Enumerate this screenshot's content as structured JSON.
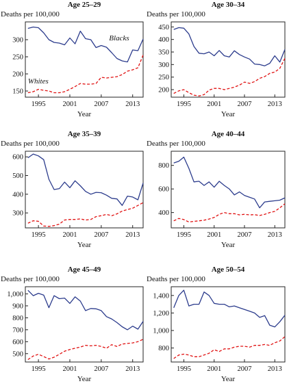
{
  "chart_data": [
    {
      "type": "line",
      "title": "Age 25–29",
      "ylabel": "Deaths per 100,000",
      "xlabel": "Year",
      "xlim": [
        1992.5,
        2015
      ],
      "xticks": [
        1995,
        2001,
        2007,
        2013
      ],
      "ylim": [
        132,
        352
      ],
      "yticks": [
        150,
        200,
        250,
        300
      ],
      "ytick_labels": [
        "150",
        "200",
        "250",
        "300"
      ],
      "x": [
        1993,
        1994,
        1995,
        1996,
        1997,
        1998,
        1999,
        2000,
        2001,
        2002,
        2003,
        2004,
        2005,
        2006,
        2007,
        2008,
        2009,
        2010,
        2011,
        2012,
        2013,
        2014,
        2015
      ],
      "series": [
        {
          "name": "Blacks",
          "color": "#2b3b8c",
          "dash": false,
          "values": [
            333,
            337,
            335,
            320,
            300,
            292,
            290,
            285,
            305,
            288,
            325,
            303,
            300,
            277,
            283,
            278,
            262,
            245,
            238,
            235,
            270,
            268,
            302
          ]
        },
        {
          "name": "Whites",
          "color": "#e01010",
          "dash": true,
          "values": [
            145,
            148,
            155,
            152,
            150,
            145,
            145,
            148,
            155,
            163,
            172,
            170,
            170,
            172,
            190,
            188,
            190,
            192,
            198,
            208,
            212,
            218,
            255
          ]
        }
      ],
      "annotations": [
        {
          "text": "Blacks",
          "x": 2008.5,
          "y": 298,
          "anchor": "start"
        },
        {
          "text": "Whites",
          "x": 1993,
          "y": 172,
          "anchor": "start"
        }
      ]
    },
    {
      "type": "line",
      "title": "Age 30–34",
      "ylabel": "Deaths per 100,000",
      "xlabel": "Year",
      "xlim": [
        1992.5,
        2015
      ],
      "xticks": [
        1995,
        2001,
        2007,
        2013
      ],
      "ylim": [
        170,
        470
      ],
      "yticks": [
        200,
        250,
        300,
        350,
        400,
        450
      ],
      "ytick_labels": [
        "200",
        "250",
        "300",
        "350",
        "400",
        "450"
      ],
      "x": [
        1993,
        1994,
        1995,
        1996,
        1997,
        1998,
        1999,
        2000,
        2001,
        2002,
        2003,
        2004,
        2005,
        2006,
        2007,
        2008,
        2009,
        2010,
        2011,
        2012,
        2013,
        2014,
        2015
      ],
      "series": [
        {
          "name": "Blacks",
          "color": "#2b3b8c",
          "dash": false,
          "values": [
            440,
            447,
            445,
            422,
            372,
            345,
            343,
            350,
            335,
            356,
            335,
            330,
            355,
            340,
            330,
            322,
            302,
            300,
            295,
            305,
            335,
            310,
            360
          ]
        },
        {
          "name": "Whites",
          "color": "#e01010",
          "dash": true,
          "values": [
            185,
            195,
            200,
            188,
            178,
            175,
            180,
            198,
            205,
            205,
            200,
            205,
            210,
            218,
            230,
            225,
            232,
            245,
            252,
            265,
            270,
            285,
            325
          ]
        }
      ]
    },
    {
      "type": "line",
      "title": "Age 35–39",
      "ylabel": "Deaths per 100,000",
      "xlabel": "Year",
      "xlim": [
        1992.5,
        2015
      ],
      "xticks": [
        1995,
        2001,
        2007,
        2013
      ],
      "ylim": [
        220,
        630
      ],
      "yticks": [
        300,
        400,
        500,
        600
      ],
      "ytick_labels": [
        "300",
        "400",
        "500",
        "600"
      ],
      "x": [
        1993,
        1994,
        1995,
        1996,
        1997,
        1998,
        1999,
        2000,
        2001,
        2002,
        2003,
        2004,
        2005,
        2006,
        2007,
        2008,
        2009,
        2010,
        2011,
        2012,
        2013,
        2014,
        2015
      ],
      "series": [
        {
          "name": "Blacks",
          "color": "#2b3b8c",
          "dash": false,
          "values": [
            595,
            615,
            605,
            585,
            480,
            425,
            430,
            465,
            435,
            472,
            445,
            415,
            400,
            410,
            408,
            395,
            378,
            375,
            340,
            390,
            385,
            370,
            460
          ]
        },
        {
          "name": "Whites",
          "color": "#e01010",
          "dash": true,
          "values": [
            245,
            258,
            255,
            230,
            228,
            232,
            240,
            262,
            265,
            265,
            268,
            262,
            265,
            280,
            285,
            292,
            285,
            295,
            310,
            318,
            325,
            340,
            355
          ]
        }
      ]
    },
    {
      "type": "line",
      "title": "Age 40–44",
      "ylabel": "Deaths per 100,000",
      "xlabel": "Year",
      "xlim": [
        1992.5,
        2015
      ],
      "xticks": [
        1995,
        2001,
        2007,
        2013
      ],
      "ylim": [
        270,
        920
      ],
      "yticks": [
        400,
        600,
        800
      ],
      "ytick_labels": [
        "400",
        "600",
        "800"
      ],
      "x": [
        1993,
        1994,
        1995,
        1996,
        1997,
        1998,
        1999,
        2000,
        2001,
        2002,
        2003,
        2004,
        2005,
        2006,
        2007,
        2008,
        2009,
        2010,
        2011,
        2012,
        2013,
        2014,
        2015
      ],
      "series": [
        {
          "name": "Blacks",
          "color": "#2b3b8c",
          "dash": false,
          "values": [
            820,
            835,
            870,
            775,
            660,
            665,
            630,
            660,
            615,
            665,
            630,
            600,
            550,
            575,
            545,
            530,
            515,
            440,
            490,
            495,
            500,
            505,
            525
          ]
        },
        {
          "name": "Whites",
          "color": "#e01010",
          "dash": true,
          "values": [
            330,
            350,
            340,
            320,
            325,
            330,
            335,
            345,
            358,
            385,
            400,
            390,
            390,
            380,
            385,
            380,
            382,
            375,
            385,
            400,
            410,
            440,
            475
          ]
        }
      ]
    },
    {
      "type": "line",
      "title": "Age 45–49",
      "ylabel": "Deaths per 100,000",
      "xlabel": "Year",
      "xlim": [
        1992.5,
        2015
      ],
      "xticks": [
        1995,
        2001,
        2007,
        2013
      ],
      "ylim": [
        430,
        1060
      ],
      "yticks": [
        500,
        600,
        700,
        800,
        900,
        1000
      ],
      "ytick_labels": [
        "500",
        "600",
        "700",
        "800",
        "900",
        "1,000"
      ],
      "x": [
        1993,
        1994,
        1995,
        1996,
        1997,
        1998,
        1999,
        2000,
        2001,
        2002,
        2003,
        2004,
        2005,
        2006,
        2007,
        2008,
        2009,
        2010,
        2011,
        2012,
        2013,
        2014,
        2015
      ],
      "series": [
        {
          "name": "Blacks",
          "color": "#2b3b8c",
          "dash": false,
          "values": [
            1030,
            985,
            1005,
            990,
            885,
            985,
            960,
            965,
            920,
            975,
            940,
            860,
            878,
            875,
            860,
            810,
            790,
            760,
            725,
            700,
            730,
            705,
            770
          ]
        },
        {
          "name": "Whites",
          "color": "#e01010",
          "dash": true,
          "values": [
            450,
            480,
            495,
            475,
            455,
            470,
            495,
            520,
            535,
            545,
            555,
            570,
            565,
            570,
            560,
            545,
            575,
            560,
            580,
            585,
            590,
            600,
            620
          ]
        }
      ]
    },
    {
      "type": "line",
      "title": "Age 50–54",
      "ylabel": "Deaths per 100,000",
      "xlabel": "Year",
      "xlim": [
        1992.5,
        2015
      ],
      "xticks": [
        1995,
        2001,
        2007,
        2013
      ],
      "ylim": [
        640,
        1500
      ],
      "yticks": [
        800,
        1000,
        1200,
        1400
      ],
      "ytick_labels": [
        "800",
        "1,000",
        "1,200",
        "1,400"
      ],
      "x": [
        1993,
        1994,
        1995,
        1996,
        1997,
        1998,
        1999,
        2000,
        2001,
        2002,
        2003,
        2004,
        2005,
        2006,
        2007,
        2008,
        2009,
        2010,
        2011,
        2012,
        2013,
        2014,
        2015
      ],
      "series": [
        {
          "name": "Blacks",
          "color": "#2b3b8c",
          "dash": false,
          "values": [
            1260,
            1400,
            1460,
            1280,
            1300,
            1300,
            1440,
            1400,
            1310,
            1300,
            1300,
            1270,
            1280,
            1260,
            1240,
            1220,
            1200,
            1150,
            1170,
            1060,
            1040,
            1100,
            1175
          ]
        },
        {
          "name": "Whites",
          "color": "#e01010",
          "dash": true,
          "values": [
            680,
            720,
            730,
            720,
            700,
            700,
            720,
            740,
            780,
            760,
            790,
            790,
            810,
            820,
            820,
            810,
            830,
            830,
            840,
            830,
            860,
            880,
            930
          ]
        }
      ]
    }
  ]
}
